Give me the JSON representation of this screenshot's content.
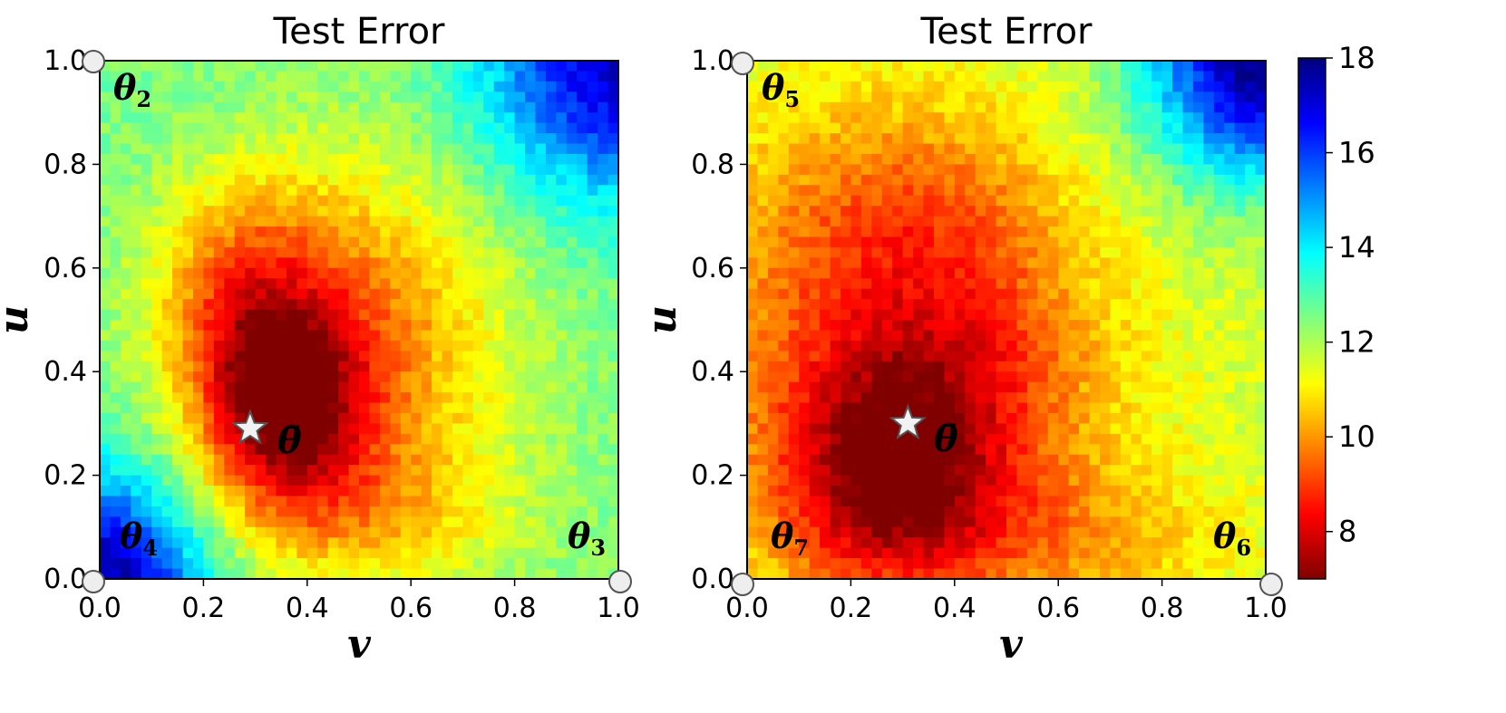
{
  "chart_data": [
    {
      "type": "heatmap",
      "title": "Test Error",
      "xlabel": "v",
      "ylabel": "u",
      "xlim": [
        0.0,
        1.0
      ],
      "ylim": [
        0.0,
        1.0
      ],
      "x_ticks": [
        "0.0",
        "0.2",
        "0.4",
        "0.6",
        "0.8",
        "1.0"
      ],
      "y_ticks": [
        "0.0",
        "0.2",
        "0.4",
        "0.6",
        "0.8",
        "1.0"
      ],
      "grid": false,
      "grid_cells": [
        50,
        50
      ],
      "anchors": [
        {
          "label": "θ",
          "sub": "2",
          "v": 0.0,
          "u": 1.0
        },
        {
          "label": "θ",
          "sub": "3",
          "v": 1.0,
          "u": 0.0
        },
        {
          "label": "θ",
          "sub": "4",
          "v": 0.0,
          "u": 0.0
        }
      ],
      "star": {
        "label": "θ̄",
        "v": 0.29,
        "u": 0.29
      },
      "error_field": {
        "background": 12.6,
        "blobs": [
          {
            "v": 0.35,
            "u": 0.33,
            "sv": 0.11,
            "su": 0.13,
            "amp": -4.4
          },
          {
            "v": 0.28,
            "u": 0.55,
            "sv": 0.13,
            "su": 0.16,
            "amp": -2.6
          },
          {
            "v": 0.52,
            "u": 0.45,
            "sv": 0.2,
            "su": 0.26,
            "amp": -2.6
          },
          {
            "v": 0.48,
            "u": 0.12,
            "sv": 0.22,
            "su": 0.1,
            "amp": -1.4
          },
          {
            "v": 0.0,
            "u": 0.0,
            "sv": 0.14,
            "su": 0.14,
            "amp": 5.2
          },
          {
            "v": 1.0,
            "u": 1.0,
            "sv": 0.18,
            "su": 0.18,
            "amp": 4.6
          }
        ]
      }
    },
    {
      "type": "heatmap",
      "title": "Test Error",
      "xlabel": "v",
      "ylabel": "u",
      "xlim": [
        0.0,
        1.0
      ],
      "ylim": [
        0.0,
        1.0
      ],
      "x_ticks": [
        "0.0",
        "0.2",
        "0.4",
        "0.6",
        "0.8",
        "1.0"
      ],
      "y_ticks": [
        "0.0",
        "0.2",
        "0.4",
        "0.6",
        "0.8",
        "1.0"
      ],
      "grid": false,
      "grid_cells": [
        50,
        50
      ],
      "anchors": [
        {
          "label": "θ",
          "sub": "5",
          "v": 0.0,
          "u": 1.0
        },
        {
          "label": "θ",
          "sub": "6",
          "v": 1.0,
          "u": 0.0
        },
        {
          "label": "θ",
          "sub": "7",
          "v": 0.0,
          "u": 0.0
        }
      ],
      "star": {
        "label": "θ̄",
        "v": 0.31,
        "u": 0.3
      },
      "error_field": {
        "background": 11.6,
        "blobs": [
          {
            "v": 0.27,
            "u": 0.2,
            "sv": 0.14,
            "su": 0.15,
            "amp": -3.2
          },
          {
            "v": 0.22,
            "u": 0.45,
            "sv": 0.26,
            "su": 0.3,
            "amp": -2.0
          },
          {
            "v": 0.45,
            "u": 0.38,
            "sv": 0.18,
            "su": 0.16,
            "amp": -1.6
          },
          {
            "v": 0.35,
            "u": 0.7,
            "sv": 0.2,
            "su": 0.15,
            "amp": -1.2
          },
          {
            "v": 0.55,
            "u": 0.08,
            "sv": 0.25,
            "su": 0.1,
            "amp": -1.5
          },
          {
            "v": 1.0,
            "u": 1.0,
            "sv": 0.16,
            "su": 0.16,
            "amp": 6.4
          }
        ]
      }
    }
  ],
  "colorbar": {
    "min": 7,
    "max": 18,
    "ticks": [
      "8",
      "10",
      "12",
      "14",
      "16",
      "18"
    ],
    "colormap": "jet"
  }
}
